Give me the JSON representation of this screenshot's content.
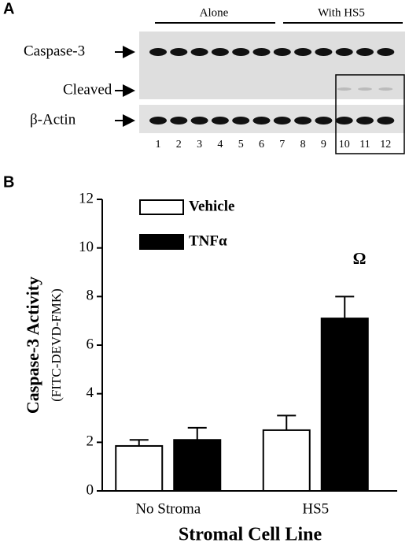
{
  "panel_a": {
    "label": "A",
    "groups": [
      "Alone",
      "With HS5"
    ],
    "rows": [
      "Caspase-3",
      "Cleaved",
      "β-Actin"
    ],
    "lanes": [
      "1",
      "2",
      "3",
      "4",
      "5",
      "6",
      "7",
      "8",
      "9",
      "10",
      "11",
      "12"
    ]
  },
  "chart_data": {
    "type": "bar",
    "panel_label": "B",
    "y_label": "Caspase-3 Activity",
    "y_sublabel": "(FITC-DEVD-FMK)",
    "x_label": "Stromal Cell Line",
    "categories": [
      "No Stroma",
      "HS5"
    ],
    "series": [
      {
        "name": "Vehicle",
        "color": "#ffffff",
        "values": [
          1.85,
          2.5
        ],
        "errors": [
          0.25,
          0.6
        ]
      },
      {
        "name": "TNFα",
        "color": "#000000",
        "values": [
          2.1,
          7.1
        ],
        "errors": [
          0.5,
          0.9
        ]
      }
    ],
    "annotation": "Ω",
    "ylim": [
      0,
      12
    ],
    "yticks": [
      0,
      2,
      4,
      6,
      8,
      10,
      12
    ]
  }
}
